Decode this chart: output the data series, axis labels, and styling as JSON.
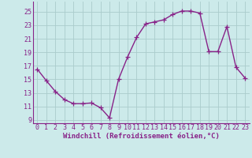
{
  "x": [
    0,
    1,
    2,
    3,
    4,
    5,
    6,
    7,
    8,
    9,
    10,
    11,
    12,
    13,
    14,
    15,
    16,
    17,
    18,
    19,
    20,
    21,
    22,
    23
  ],
  "y": [
    16.5,
    14.8,
    13.2,
    12.0,
    11.4,
    11.4,
    11.5,
    10.8,
    9.3,
    15.0,
    18.3,
    21.2,
    23.2,
    23.5,
    23.8,
    24.6,
    25.1,
    25.1,
    24.8,
    19.1,
    19.1,
    22.8,
    16.8,
    15.2
  ],
  "line_color": "#882288",
  "marker": "+",
  "markersize": 4,
  "linewidth": 1.0,
  "xlabel": "Windchill (Refroidissement éolien,°C)",
  "xlabel_fontsize": 6.5,
  "yticks": [
    9,
    11,
    13,
    15,
    17,
    19,
    21,
    23,
    25
  ],
  "xticks": [
    0,
    1,
    2,
    3,
    4,
    5,
    6,
    7,
    8,
    9,
    10,
    11,
    12,
    13,
    14,
    15,
    16,
    17,
    18,
    19,
    20,
    21,
    22,
    23
  ],
  "ylim": [
    8.5,
    26.5
  ],
  "xlim": [
    -0.5,
    23.5
  ],
  "bg_color": "#cceaea",
  "grid_color": "#aacccc",
  "tick_fontsize": 6,
  "spine_color": "#882288"
}
